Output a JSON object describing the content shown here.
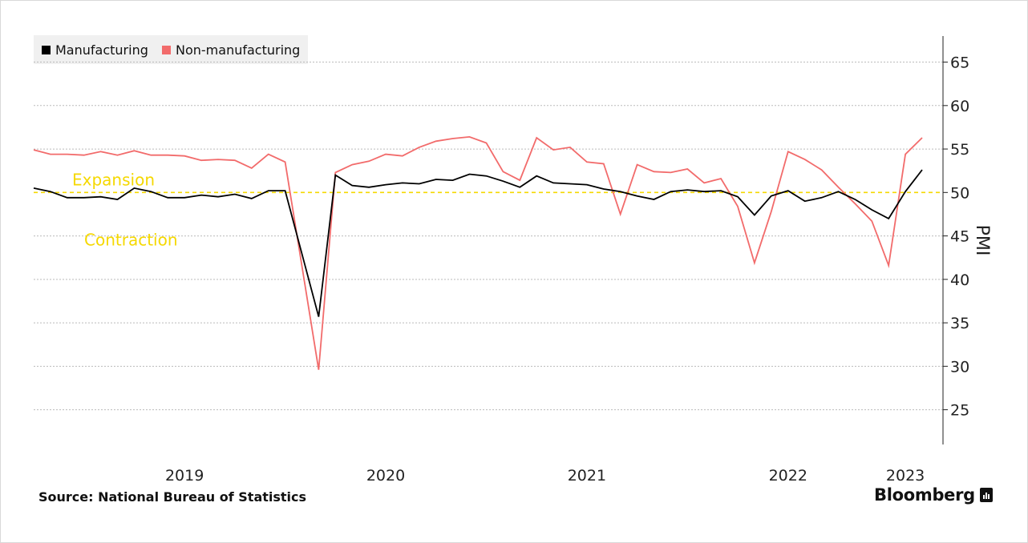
{
  "legend": {
    "manufacturing": "Manufacturing",
    "non_manufacturing": "Non-manufacturing"
  },
  "source": "Source:  National Bureau of Statistics",
  "brand": "Bloomberg",
  "colors": {
    "manufacturing": "#000000",
    "non_manufacturing": "#f26b6b",
    "threshold": "#f5d800",
    "zone_text": "#f5d800",
    "grid": "#bbbbbb",
    "legend_bg": "#f0f0f0"
  },
  "chart_data": {
    "type": "line",
    "ylabel": "PMI",
    "ylim": [
      21,
      68
    ],
    "yticks": [
      25,
      30,
      35,
      40,
      45,
      50,
      55,
      60,
      65
    ],
    "xlim": [
      "2018-09",
      "2023-02"
    ],
    "x_tick_labels": [
      "2019",
      "2020",
      "2021",
      "2022",
      "2023"
    ],
    "grid": true,
    "legend_position": "top-left",
    "threshold": {
      "value": 50,
      "above_label": "Expansion",
      "below_label": "Contraction"
    },
    "x": [
      "2018-09",
      "2018-10",
      "2018-11",
      "2018-12",
      "2019-01",
      "2019-02",
      "2019-03",
      "2019-04",
      "2019-05",
      "2019-06",
      "2019-07",
      "2019-08",
      "2019-09",
      "2019-10",
      "2019-11",
      "2019-12",
      "2020-02",
      "2020-03",
      "2020-04",
      "2020-05",
      "2020-06",
      "2020-07",
      "2020-08",
      "2020-09",
      "2020-10",
      "2020-11",
      "2020-12",
      "2021-01",
      "2021-02",
      "2021-03",
      "2021-04",
      "2021-05",
      "2021-06",
      "2021-07",
      "2021-08",
      "2021-09",
      "2021-10",
      "2021-11",
      "2021-12",
      "2022-01",
      "2022-02",
      "2022-03",
      "2022-04",
      "2022-05",
      "2022-06",
      "2022-07",
      "2022-08",
      "2022-09",
      "2022-10",
      "2022-11",
      "2022-12",
      "2023-01",
      "2023-02"
    ],
    "series": [
      {
        "name": "Manufacturing",
        "values": [
          50.5,
          50.1,
          49.4,
          49.4,
          49.5,
          49.2,
          50.5,
          50.1,
          49.4,
          49.4,
          49.7,
          49.5,
          49.8,
          49.3,
          50.2,
          50.2,
          35.7,
          52.0,
          50.8,
          50.6,
          50.9,
          51.1,
          51.0,
          51.5,
          51.4,
          52.1,
          51.9,
          51.3,
          50.6,
          51.9,
          51.1,
          51.0,
          50.9,
          50.4,
          50.1,
          49.6,
          49.2,
          50.1,
          50.3,
          50.1,
          50.2,
          49.5,
          47.4,
          49.6,
          50.2,
          49.0,
          49.4,
          50.1,
          49.2,
          48.0,
          47.0,
          50.1,
          52.6
        ],
        "skip_indices": [
          4,
          5
        ]
      },
      {
        "name": "Non-manufacturing",
        "values": [
          54.9,
          54.4,
          54.4,
          54.3,
          54.7,
          54.3,
          54.8,
          54.3,
          54.3,
          54.2,
          53.7,
          53.8,
          53.7,
          52.8,
          54.4,
          53.5,
          29.6,
          52.3,
          53.2,
          53.6,
          54.4,
          54.2,
          55.2,
          55.9,
          56.2,
          56.4,
          55.7,
          52.4,
          51.4,
          56.3,
          54.9,
          55.2,
          53.5,
          53.3,
          47.5,
          53.2,
          52.4,
          52.3,
          52.7,
          51.1,
          51.6,
          48.4,
          41.9,
          47.8,
          54.7,
          53.8,
          52.6,
          50.6,
          48.7,
          46.7,
          41.6,
          54.4,
          56.3
        ],
        "skip_indices": [
          4,
          5
        ]
      }
    ]
  }
}
